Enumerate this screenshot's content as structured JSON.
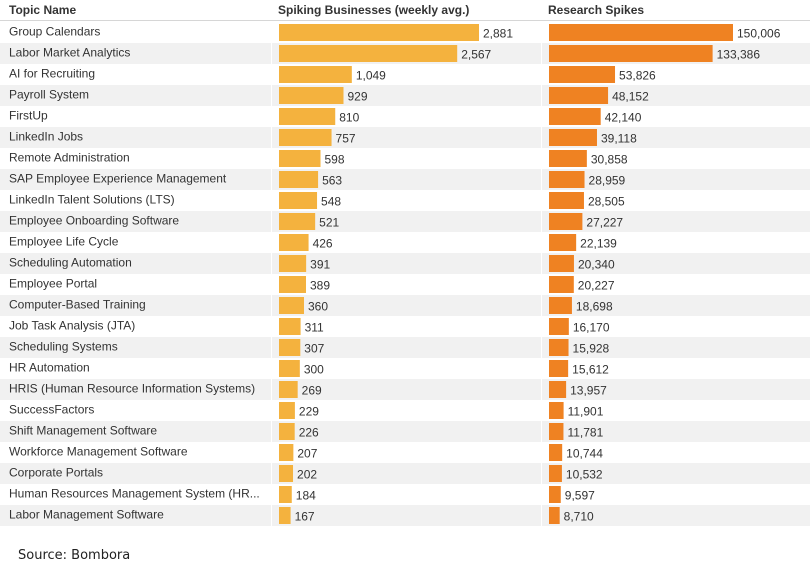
{
  "chart_data": {
    "type": "table",
    "columns": [
      "Topic Name",
      "Spiking Businesses (weekly avg.)",
      "Research Spikes"
    ],
    "rows": [
      {
        "topic": "Group Calendars",
        "businesses": 2881,
        "businesses_label": "2,881",
        "spikes": 150006,
        "spikes_label": "150,006"
      },
      {
        "topic": "Labor Market Analytics",
        "businesses": 2567,
        "businesses_label": "2,567",
        "spikes": 133386,
        "spikes_label": "133,386"
      },
      {
        "topic": "AI for Recruiting",
        "businesses": 1049,
        "businesses_label": "1,049",
        "spikes": 53826,
        "spikes_label": "53,826"
      },
      {
        "topic": "Payroll System",
        "businesses": 929,
        "businesses_label": "929",
        "spikes": 48152,
        "spikes_label": "48,152"
      },
      {
        "topic": "FirstUp",
        "businesses": 810,
        "businesses_label": "810",
        "spikes": 42140,
        "spikes_label": "42,140"
      },
      {
        "topic": "LinkedIn Jobs",
        "businesses": 757,
        "businesses_label": "757",
        "spikes": 39118,
        "spikes_label": "39,118"
      },
      {
        "topic": "Remote Administration",
        "businesses": 598,
        "businesses_label": "598",
        "spikes": 30858,
        "spikes_label": "30,858"
      },
      {
        "topic": "SAP Employee Experience Management",
        "businesses": 563,
        "businesses_label": "563",
        "spikes": 28959,
        "spikes_label": "28,959"
      },
      {
        "topic": "LinkedIn Talent Solutions (LTS)",
        "businesses": 548,
        "businesses_label": "548",
        "spikes": 28505,
        "spikes_label": "28,505"
      },
      {
        "topic": "Employee Onboarding Software",
        "businesses": 521,
        "businesses_label": "521",
        "spikes": 27227,
        "spikes_label": "27,227"
      },
      {
        "topic": "Employee Life Cycle",
        "businesses": 426,
        "businesses_label": "426",
        "spikes": 22139,
        "spikes_label": "22,139"
      },
      {
        "topic": "Scheduling Automation",
        "businesses": 391,
        "businesses_label": "391",
        "spikes": 20340,
        "spikes_label": "20,340"
      },
      {
        "topic": "Employee Portal",
        "businesses": 389,
        "businesses_label": "389",
        "spikes": 20227,
        "spikes_label": "20,227"
      },
      {
        "topic": "Computer-Based Training",
        "businesses": 360,
        "businesses_label": "360",
        "spikes": 18698,
        "spikes_label": "18,698"
      },
      {
        "topic": "Job Task Analysis (JTA)",
        "businesses": 311,
        "businesses_label": "311",
        "spikes": 16170,
        "spikes_label": "16,170"
      },
      {
        "topic": "Scheduling Systems",
        "businesses": 307,
        "businesses_label": "307",
        "spikes": 15928,
        "spikes_label": "15,928"
      },
      {
        "topic": "HR Automation",
        "businesses": 300,
        "businesses_label": "300",
        "spikes": 15612,
        "spikes_label": "15,612"
      },
      {
        "topic": "HRIS (Human Resource Information Systems)",
        "businesses": 269,
        "businesses_label": "269",
        "spikes": 13957,
        "spikes_label": "13,957"
      },
      {
        "topic": "SuccessFactors",
        "businesses": 229,
        "businesses_label": "229",
        "spikes": 11901,
        "spikes_label": "11,901"
      },
      {
        "topic": "Shift Management Software",
        "businesses": 226,
        "businesses_label": "226",
        "spikes": 11781,
        "spikes_label": "11,781"
      },
      {
        "topic": "Workforce Management Software",
        "businesses": 207,
        "businesses_label": "207",
        "spikes": 10744,
        "spikes_label": "10,744"
      },
      {
        "topic": "Corporate Portals",
        "businesses": 202,
        "businesses_label": "202",
        "spikes": 10532,
        "spikes_label": "10,532"
      },
      {
        "topic": "Human Resources Management System (HR...",
        "businesses": 184,
        "businesses_label": "184",
        "spikes": 9597,
        "spikes_label": "9,597"
      },
      {
        "topic": "Labor Management Software",
        "businesses": 167,
        "businesses_label": "167",
        "spikes": 8710,
        "spikes_label": "8,710"
      }
    ]
  },
  "source": "Source: Bombora",
  "colors": {
    "businesses_bar": "#f4b23e",
    "spikes_bar": "#ef8222",
    "row_stripe": "#f1f1f1",
    "text": "#333333",
    "rule": "#d6d6d6"
  }
}
